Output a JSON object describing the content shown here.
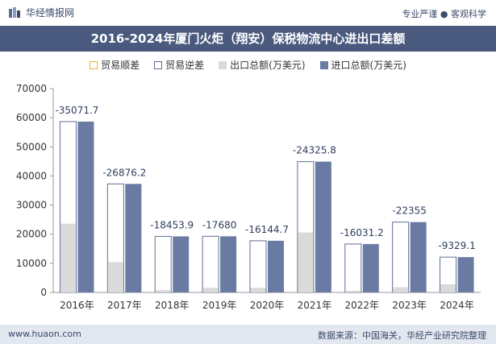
{
  "header": {
    "brand": "华经情报网",
    "slogan": "专业严谨 ● 客观科学"
  },
  "footer": {
    "website": "www.huaon.com",
    "source": "数据来源：中国海关，华经产业研究院整理"
  },
  "colors": {
    "title_bg": "#495a7e",
    "export": "#dadada",
    "import": "#6a7ba3",
    "surplus_border": "#f2b233",
    "deficit_border": "#5d6e94"
  },
  "chart_data": {
    "type": "bar",
    "title": "2016-2024年厦门火炬（翔安）保税物流中心进出口差额",
    "categories": [
      "2016年",
      "2017年",
      "2018年",
      "2019年",
      "2020年",
      "2021年",
      "2022年",
      "2023年",
      "2024年"
    ],
    "series": [
      {
        "name": "贸易顺差",
        "values": [
          0,
          0,
          0,
          0,
          0,
          0,
          0,
          0,
          0
        ]
      },
      {
        "name": "贸易逆差",
        "values": [
          -35071.7,
          -26876.2,
          -18453.9,
          -17680,
          -16144.7,
          -24325.8,
          -16031.2,
          -22355,
          -9329.1
        ]
      },
      {
        "name": "出口总额(万美元)",
        "values": [
          23600,
          10400,
          800,
          1600,
          1600,
          20600,
          600,
          1800,
          2800
        ]
      },
      {
        "name": "进口总额(万美元)",
        "values": [
          58671.7,
          37276.2,
          19253.9,
          19280,
          17744.7,
          44925.8,
          16631.2,
          24155,
          12129.1
        ]
      }
    ],
    "data_labels": [
      "-35071.7",
      "-26876.2",
      "-18453.9",
      "-17680",
      "-16144.7",
      "-24325.8",
      "-16031.2",
      "-22355",
      "-9329.1"
    ],
    "ylim": [
      0,
      70000
    ],
    "yticks": [
      "0",
      "10000",
      "20000",
      "30000",
      "40000",
      "50000",
      "60000",
      "70000"
    ],
    "xlabel": "",
    "ylabel": ""
  }
}
